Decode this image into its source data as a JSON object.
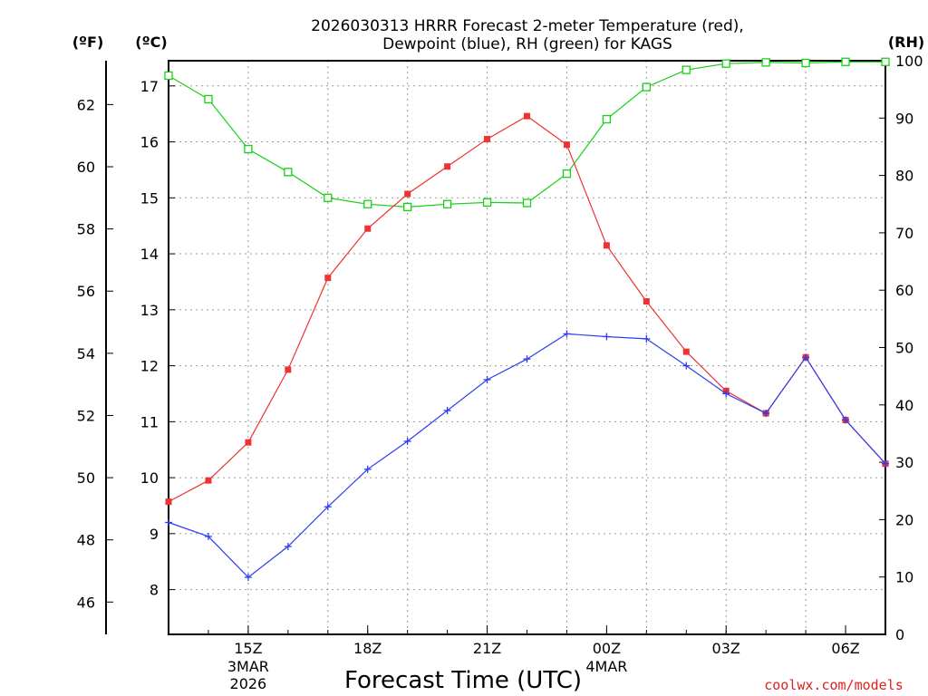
{
  "colors": {
    "temperature": "#f03232",
    "dewpoint": "#2c3ef0",
    "rh": "#14d214",
    "credit": "#e0201e"
  },
  "chart_data": {
    "type": "line",
    "title_line1": "2026030313 HRRR Forecast 2-meter Temperature (red),",
    "title_line2": "Dewpoint (blue), RH (green) for KAGS",
    "xlabel": "Forecast Time (UTC)",
    "credit": "coolwx.com/models",
    "unit_labels": {
      "fahrenheit": "(ºF)",
      "celsius": "(ºC)",
      "rh": "(RH)"
    },
    "x_hours": [
      13,
      14,
      15,
      16,
      17,
      18,
      19,
      20,
      21,
      22,
      23,
      24,
      25,
      26,
      27,
      28,
      29,
      30,
      31
    ],
    "x_range": [
      13,
      31
    ],
    "x_ticks": [
      {
        "hour": 15,
        "label": "15Z",
        "date1": "3MAR",
        "date2": "2026"
      },
      {
        "hour": 18,
        "label": "18Z"
      },
      {
        "hour": 21,
        "label": "21Z"
      },
      {
        "hour": 24,
        "label": "00Z",
        "date1": "4MAR"
      },
      {
        "hour": 27,
        "label": "03Z"
      },
      {
        "hour": 30,
        "label": "06Z"
      }
    ],
    "celsius_range": [
      7.2,
      17.45
    ],
    "celsius_ticks": [
      "8",
      "9",
      "10",
      "11",
      "12",
      "13",
      "14",
      "15",
      "16",
      "17"
    ],
    "fahrenheit_ticks": [
      "46",
      "48",
      "50",
      "52",
      "54",
      "56",
      "58",
      "60",
      "62"
    ],
    "rh_range": [
      0,
      100
    ],
    "rh_ticks": [
      "0",
      "10",
      "20",
      "30",
      "40",
      "50",
      "60",
      "70",
      "80",
      "90",
      "100"
    ],
    "series": [
      {
        "name": "2-meter Temperature",
        "axis": "celsius",
        "marker": "filled-square",
        "values": [
          9.57,
          9.95,
          10.63,
          11.93,
          13.57,
          14.45,
          15.07,
          15.56,
          16.05,
          16.46,
          15.95,
          14.15,
          13.15,
          12.25,
          11.55,
          11.15,
          12.15,
          11.03,
          10.25
        ]
      },
      {
        "name": "Dewpoint",
        "axis": "celsius",
        "marker": "plus",
        "values": [
          9.2,
          8.95,
          8.22,
          8.77,
          9.48,
          10.15,
          10.65,
          11.2,
          11.75,
          12.12,
          12.57,
          12.52,
          12.48,
          12.0,
          11.5,
          11.15,
          12.15,
          11.03,
          10.25
        ]
      },
      {
        "name": "RH",
        "axis": "rh",
        "marker": "open-square",
        "values": [
          97.4,
          93.3,
          84.6,
          80.6,
          76.1,
          75.0,
          74.5,
          75.0,
          75.3,
          75.2,
          80.3,
          89.8,
          95.4,
          98.4,
          99.5,
          99.7,
          99.6,
          99.8,
          99.8
        ]
      }
    ]
  }
}
